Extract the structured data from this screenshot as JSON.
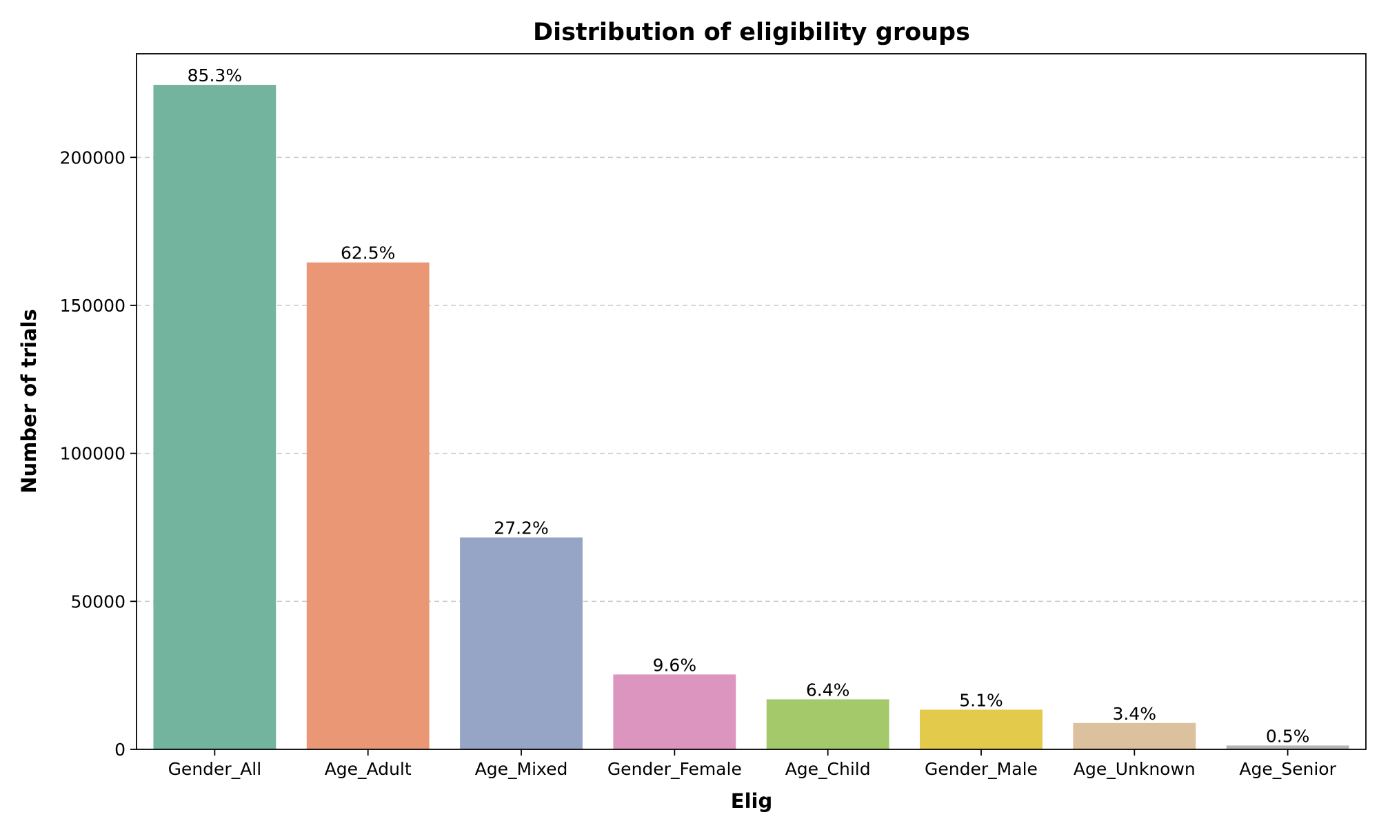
{
  "chart_data": {
    "type": "bar",
    "title": "Distribution of eligibility groups",
    "xlabel": "Elig",
    "ylabel": "Number of trials",
    "categories": [
      "Gender_All",
      "Age_Adult",
      "Age_Mixed",
      "Gender_Female",
      "Age_Child",
      "Gender_Male",
      "Age_Unknown",
      "Age_Senior"
    ],
    "values": [
      224500,
      164500,
      71600,
      25300,
      16900,
      13400,
      8900,
      1300
    ],
    "data_labels": [
      "85.3%",
      "62.5%",
      "27.2%",
      "9.6%",
      "6.4%",
      "5.1%",
      "3.4%",
      "0.5%"
    ],
    "colors": [
      "#73b49f",
      "#e99775",
      "#96a5c5",
      "#dc95bf",
      "#a3c96b",
      "#e4ca4b",
      "#dbc19d",
      "#b5b5b5"
    ],
    "ylim": [
      0,
      235000
    ],
    "yticks": [
      0,
      50000,
      100000,
      150000,
      200000
    ],
    "ytick_labels": [
      "0",
      "50000",
      "100000",
      "150000",
      "200000"
    ],
    "grid": "y-dashed",
    "legend": "none"
  }
}
